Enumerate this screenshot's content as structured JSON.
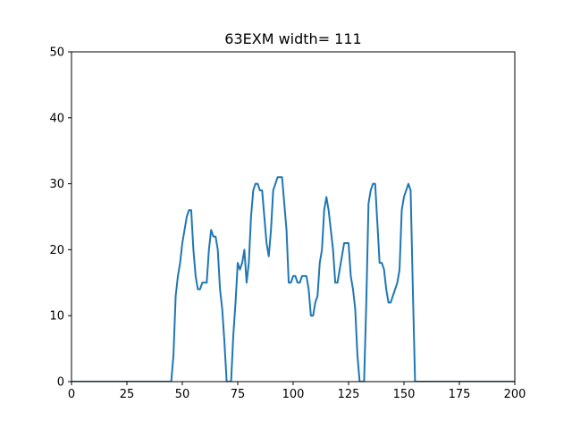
{
  "chart_data": {
    "type": "line",
    "title": "63EXM width= 111",
    "xlabel": "",
    "ylabel": "",
    "xlim": [
      0,
      200
    ],
    "ylim": [
      0,
      50
    ],
    "xticks": [
      0,
      25,
      50,
      75,
      100,
      125,
      150,
      175,
      200
    ],
    "yticks": [
      0,
      10,
      20,
      30,
      40,
      50
    ],
    "grid": false,
    "colors": {
      "line": "#1f77b4",
      "axes": "#000000"
    },
    "series": [
      {
        "x": [
          0,
          45,
          46,
          47,
          48,
          49,
          50,
          51,
          52,
          53,
          54,
          55,
          56,
          57,
          58,
          59,
          60,
          61,
          62,
          63,
          64,
          65,
          66,
          67,
          68,
          69,
          70,
          71,
          72,
          73,
          74,
          75,
          76,
          77,
          78,
          79,
          80,
          81,
          82,
          83,
          84,
          85,
          86,
          87,
          88,
          89,
          90,
          91,
          92,
          93,
          94,
          95,
          96,
          97,
          98,
          99,
          100,
          101,
          102,
          103,
          104,
          105,
          106,
          107,
          108,
          109,
          110,
          111,
          112,
          113,
          114,
          115,
          116,
          117,
          118,
          119,
          120,
          121,
          122,
          123,
          124,
          125,
          126,
          127,
          128,
          129,
          130,
          131,
          132,
          133,
          134,
          135,
          136,
          137,
          138,
          139,
          140,
          141,
          142,
          143,
          144,
          145,
          146,
          147,
          148,
          149,
          150,
          151,
          152,
          153,
          154,
          155,
          156,
          157,
          200
        ],
        "y": [
          0,
          0,
          4,
          13,
          16,
          18,
          21,
          23,
          25,
          26,
          26,
          20,
          16,
          14,
          14,
          15,
          15,
          15,
          20,
          23,
          22,
          22,
          20,
          14,
          11,
          6,
          0,
          0,
          0,
          7,
          12,
          18,
          17,
          18,
          20,
          15,
          18,
          25,
          29,
          30,
          30,
          29,
          29,
          25,
          21,
          19,
          23,
          29,
          30,
          31,
          31,
          31,
          27,
          23,
          15,
          15,
          16,
          16,
          15,
          15,
          16,
          16,
          16,
          14,
          10,
          10,
          12,
          13,
          18,
          20,
          26,
          28,
          26,
          23,
          20,
          15,
          15,
          17,
          19,
          21,
          21,
          21,
          16,
          14,
          11,
          4,
          0,
          0,
          0,
          12,
          27,
          29,
          30,
          30,
          24,
          18,
          18,
          17,
          14,
          12,
          12,
          13,
          14,
          15,
          17,
          26,
          28,
          29,
          30,
          29,
          14,
          0,
          0,
          0,
          0
        ]
      }
    ]
  }
}
